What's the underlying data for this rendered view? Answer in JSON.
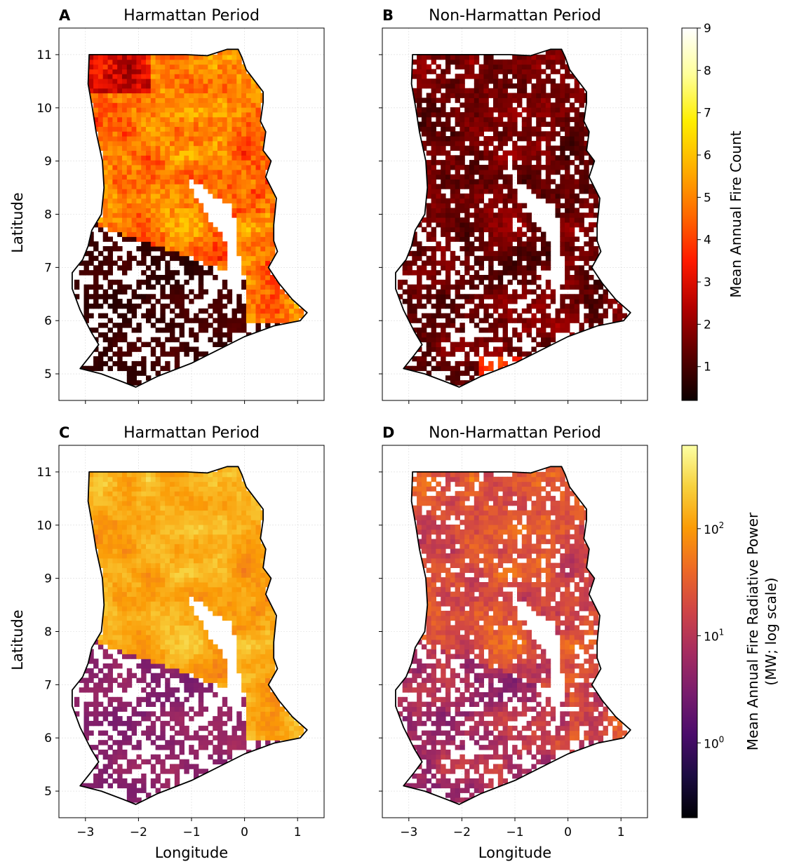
{
  "panels": [
    {
      "letter": "A",
      "title": "Harmattan Period",
      "palette": "hot",
      "variant": "count_harmattan"
    },
    {
      "letter": "B",
      "title": "Non-Harmattan Period",
      "palette": "hot",
      "variant": "count_non"
    },
    {
      "letter": "C",
      "title": "Harmattan Period",
      "palette": "inferno",
      "variant": "frp_harmattan"
    },
    {
      "letter": "D",
      "title": "Non-Harmattan Period",
      "palette": "inferno",
      "variant": "frp_non"
    }
  ],
  "x_axis": {
    "label": "Longitude",
    "ticks": [
      {
        "value": -3,
        "label": "−3"
      },
      {
        "value": -2,
        "label": "−2"
      },
      {
        "value": -1,
        "label": "−1"
      },
      {
        "value": 0,
        "label": "0"
      },
      {
        "value": 1,
        "label": "1"
      }
    ],
    "range": [
      -3.5,
      1.5
    ]
  },
  "y_axis": {
    "label": "Latitude",
    "ticks": [
      {
        "value": 5,
        "label": "5"
      },
      {
        "value": 6,
        "label": "6"
      },
      {
        "value": 7,
        "label": "7"
      },
      {
        "value": 8,
        "label": "8"
      },
      {
        "value": 9,
        "label": "9"
      },
      {
        "value": 10,
        "label": "10"
      },
      {
        "value": 11,
        "label": "11"
      }
    ],
    "range": [
      4.5,
      11.5
    ]
  },
  "colorbars": [
    {
      "label": "Mean Annual Fire Count",
      "scale": "linear",
      "range": [
        0.2,
        9
      ],
      "colors": [
        "#0b0000",
        "#5c0000",
        "#b30000",
        "#ff1a00",
        "#ff6a00",
        "#ffb000",
        "#ffee00",
        "#ffff99",
        "#ffffff"
      ],
      "ticks": [
        {
          "value": 1,
          "label": "1"
        },
        {
          "value": 2,
          "label": "2"
        },
        {
          "value": 3,
          "label": "3"
        },
        {
          "value": 4,
          "label": "4"
        },
        {
          "value": 5,
          "label": "5"
        },
        {
          "value": 6,
          "label": "6"
        },
        {
          "value": 7,
          "label": "7"
        },
        {
          "value": 8,
          "label": "8"
        },
        {
          "value": 9,
          "label": "9"
        }
      ]
    },
    {
      "label": "Mean Annual Fire Radiative Power",
      "label2": "(MW; log scale)",
      "scale": "log",
      "range": [
        0.2,
        600
      ],
      "colors": [
        "#000004",
        "#1b0c41",
        "#4a0c6b",
        "#781c6d",
        "#a52c60",
        "#cf4446",
        "#ed6925",
        "#fb9b06",
        "#f7d13d",
        "#fcffa4"
      ],
      "ticks": [
        {
          "value": 1,
          "base": "10",
          "exp": "0"
        },
        {
          "value": 10,
          "base": "10",
          "exp": "1"
        },
        {
          "value": 100,
          "base": "10",
          "exp": "2"
        }
      ]
    }
  ],
  "colors": {
    "outline": "#000000",
    "grid": "#d9d9d9",
    "nodata": "#ffffff"
  }
}
